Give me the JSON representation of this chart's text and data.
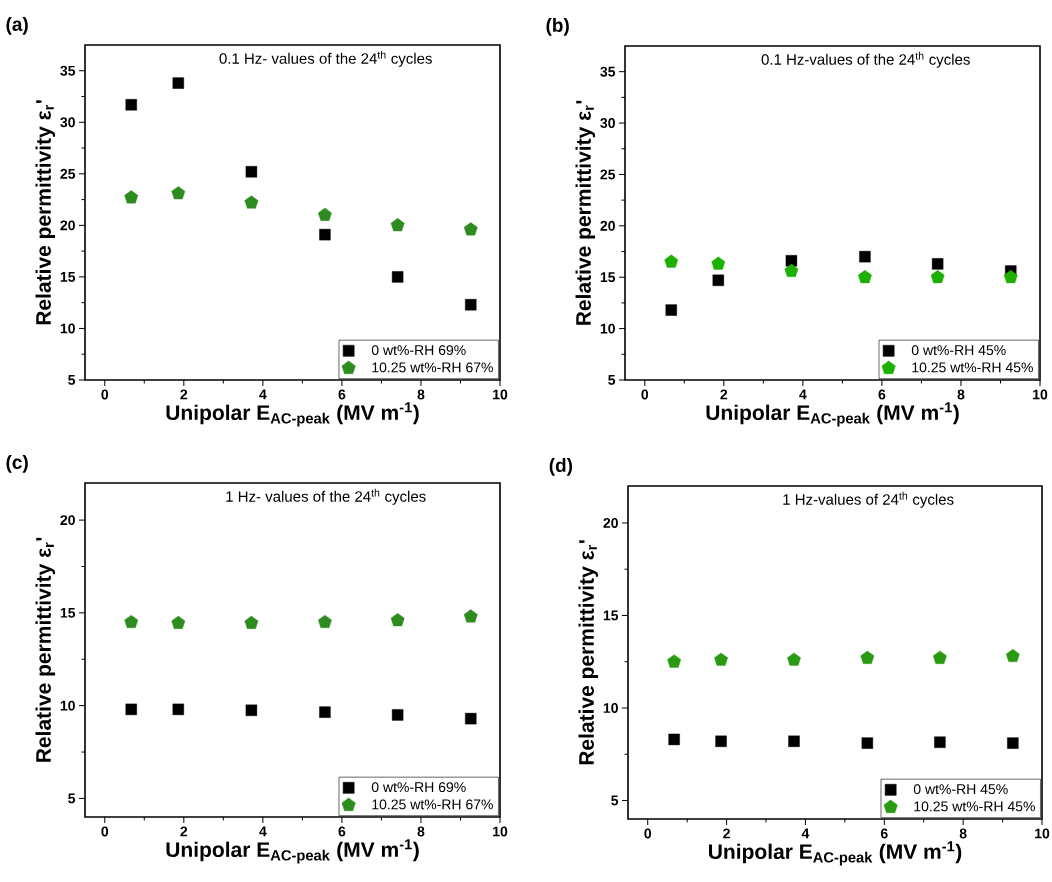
{
  "chart_data": [
    {
      "type": "scatter",
      "title": "0.1 Hz- values of the 24$^{th}$ cycles",
      "xlabel": "Unipolar E$_{AC-peak}$ (MV m$^{-1}$)",
      "ylabel": "Relative permittivity ε$_{r}$'",
      "annotations": [
        "(a)"
      ],
      "x": [
        0.67,
        1.86,
        3.71,
        5.57,
        7.41,
        9.26
      ],
      "series": [
        {
          "name": "0 wt%-RH 69%",
          "color": "#000000",
          "marker": "square",
          "values": [
            31.7,
            33.8,
            25.2,
            19.1,
            15.0,
            12.3
          ]
        },
        {
          "name": "10.25 wt%-RH 67%",
          "color": "#2e8b1f",
          "values": [
            22.7,
            23.1,
            22.2,
            21.0,
            20.0,
            19.6
          ]
        }
      ],
      "xlim": [
        -0.5,
        10
      ],
      "ylim": [
        5,
        37.5
      ],
      "xticks": [
        0,
        2,
        4,
        6,
        8,
        10
      ],
      "yticks": [
        5,
        10,
        15,
        20,
        25,
        30,
        35
      ],
      "legend": "bottom right"
    },
    {
      "type": "scatter",
      "title": "0.1 Hz-values of the 24$^{th}$ cycles",
      "xlabel": "Unipolar E$_{AC-peak}$ (MV m$^{-1}$)",
      "ylabel": "Relative permittivity ε$_{r}$'",
      "annotations": [
        "(b)"
      ],
      "x": [
        0.67,
        1.86,
        3.71,
        5.57,
        7.41,
        9.26
      ],
      "series": [
        {
          "name": "0 wt%-RH 45%",
          "color": "#000000",
          "marker": "square",
          "values": [
            11.8,
            14.7,
            16.6,
            17.0,
            16.3,
            15.6
          ]
        },
        {
          "name": "10.25 wt%-RH 45%",
          "color": "#1db000",
          "values": [
            16.5,
            16.3,
            15.6,
            15.0,
            15.0,
            15.0
          ]
        }
      ],
      "xlim": [
        -0.5,
        10
      ],
      "ylim": [
        5,
        37.5
      ],
      "xticks": [
        0,
        2,
        4,
        6,
        8,
        10
      ],
      "yticks": [
        5,
        10,
        15,
        20,
        25,
        30,
        35
      ],
      "legend": "bottom right"
    },
    {
      "type": "scatter",
      "title": "1 Hz- values of the 24$^{th}$ cycles",
      "xlabel": "Unipolar E$_{AC-peak}$ (MV m$^{-1}$)",
      "ylabel": "Relative permittivity ε$_{r}$'",
      "annotations": [
        "(c)"
      ],
      "x": [
        0.67,
        1.86,
        3.71,
        5.57,
        7.41,
        9.26
      ],
      "series": [
        {
          "name": "0 wt%-RH 69%",
          "color": "#000000",
          "marker": "square",
          "values": [
            9.8,
            9.8,
            9.75,
            9.65,
            9.5,
            9.3
          ]
        },
        {
          "name": "10.25 wt%-RH 67%",
          "color": "#2e8b1f",
          "values": [
            14.5,
            14.45,
            14.45,
            14.5,
            14.6,
            14.8
          ]
        }
      ],
      "xlim": [
        -0.5,
        10
      ],
      "ylim": [
        4,
        22
      ],
      "xticks": [
        0,
        2,
        4,
        6,
        8,
        10
      ],
      "yticks": [
        5,
        10,
        15,
        20
      ],
      "legend": "bottom right"
    },
    {
      "type": "scatter",
      "title": "1 Hz-values of 24$^{th}$ cycles",
      "xlabel": "Unipolar E$_{AC-peak}$ (MV m$^{-1}$)",
      "ylabel": "Relative permittivity ε$_{r}$'",
      "annotations": [
        "(d)"
      ],
      "x": [
        0.67,
        1.86,
        3.71,
        5.57,
        7.41,
        9.26
      ],
      "series": [
        {
          "name": "0 wt%-RH 45%",
          "color": "#000000",
          "marker": "square",
          "values": [
            8.3,
            8.2,
            8.2,
            8.1,
            8.15,
            8.1
          ]
        },
        {
          "name": "10.25 wt%-RH 45%",
          "color": "#2a9a12",
          "values": [
            12.5,
            12.6,
            12.6,
            12.7,
            12.7,
            12.8
          ]
        }
      ],
      "xlim": [
        -0.5,
        10
      ],
      "ylim": [
        4,
        22
      ],
      "xticks": [
        0,
        2,
        4,
        6,
        8,
        10
      ],
      "yticks": [
        5,
        10,
        15,
        20
      ],
      "legend": "bottom right"
    }
  ]
}
